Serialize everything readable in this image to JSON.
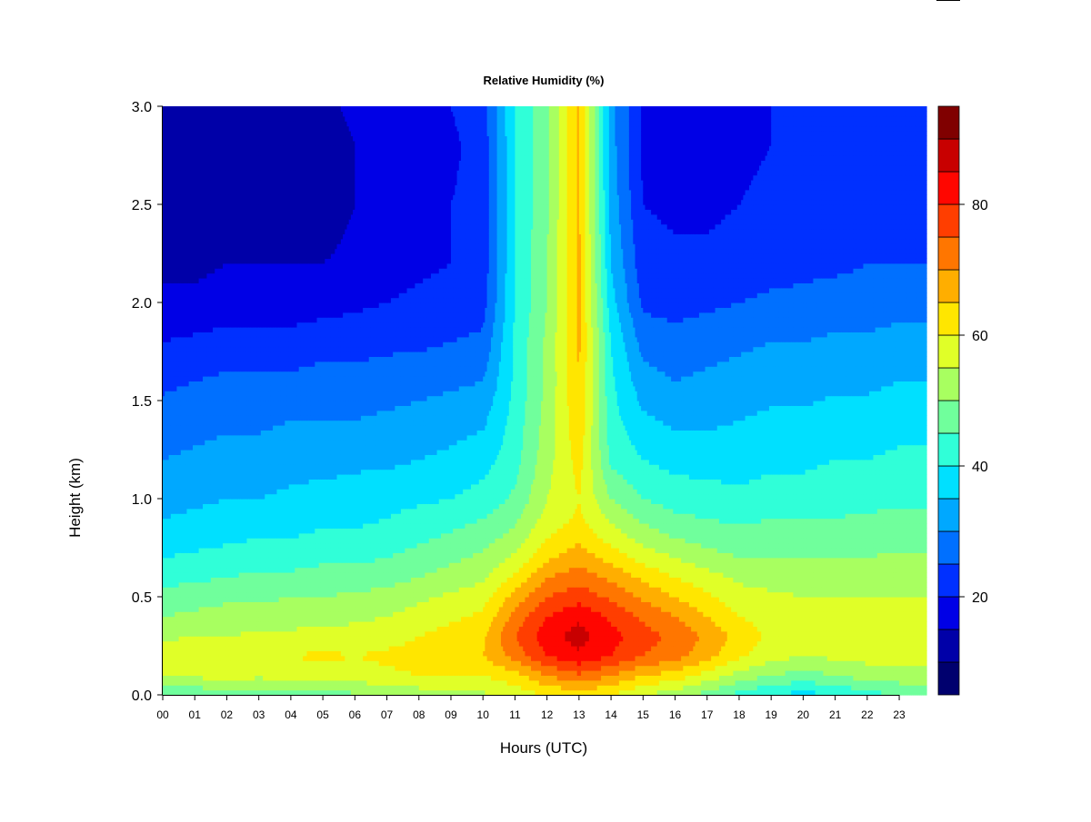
{
  "chart_data": {
    "type": "heatmap",
    "title": "Relative Humidity (%)",
    "xlabel": "Hours (UTC)",
    "ylabel": "Height (km)",
    "x_ticks": [
      "00",
      "01",
      "02",
      "03",
      "04",
      "05",
      "06",
      "07",
      "08",
      "09",
      "10",
      "11",
      "12",
      "13",
      "14",
      "15",
      "16",
      "17",
      "18",
      "19",
      "20",
      "21",
      "22",
      "23"
    ],
    "y_ticks": [
      "0.0",
      "0.5",
      "1.0",
      "1.5",
      "2.0",
      "2.5",
      "3.0"
    ],
    "xlim": [
      0,
      23.85
    ],
    "ylim": [
      0,
      3.0
    ],
    "colorbar": {
      "ticks": [
        "20",
        "40",
        "60",
        "80"
      ],
      "tick_values": [
        20,
        40,
        60,
        80
      ],
      "range": [
        5,
        95
      ],
      "levels": [
        5,
        10,
        15,
        20,
        25,
        30,
        35,
        40,
        45,
        50,
        55,
        60,
        65,
        70,
        75,
        80,
        85,
        90,
        95
      ],
      "colors": [
        "#00006e",
        "#0000a8",
        "#0000e6",
        "#0030ff",
        "#0070ff",
        "#00a8ff",
        "#00e0ff",
        "#30ffd8",
        "#70ff9c",
        "#a8ff60",
        "#e0ff28",
        "#ffe600",
        "#ffae00",
        "#ff7600",
        "#ff3e00",
        "#ff0600",
        "#c80000",
        "#800000"
      ]
    },
    "hours": [
      0,
      1,
      2,
      3,
      4,
      5,
      6,
      7,
      8,
      9,
      10,
      11,
      12,
      13,
      14,
      15,
      16,
      17,
      18,
      19,
      20,
      21,
      22,
      23
    ],
    "heights_km": [
      0.0,
      0.1,
      0.2,
      0.3,
      0.4,
      0.5,
      0.6,
      0.7,
      0.8,
      0.9,
      1.0,
      1.2,
      1.4,
      1.6,
      1.8,
      2.0,
      2.2,
      2.5,
      2.8,
      3.0
    ],
    "values": [
      [
        45,
        55,
        58,
        54,
        50,
        47,
        43,
        40,
        37,
        35,
        33,
        30,
        27,
        24,
        20,
        16,
        14,
        12,
        12,
        13
      ],
      [
        46,
        56,
        59,
        55,
        51,
        48,
        44,
        41,
        38,
        36,
        34,
        31,
        28,
        25,
        21,
        16,
        14,
        12,
        12,
        13
      ],
      [
        47,
        57,
        58,
        55,
        52,
        49,
        45,
        42,
        39,
        37,
        35,
        32,
        29,
        26,
        22,
        17,
        15,
        13,
        13,
        14
      ],
      [
        47,
        56,
        59,
        56,
        52,
        49,
        46,
        43,
        40,
        38,
        35,
        32,
        29,
        26,
        22,
        17,
        15,
        13,
        13,
        14
      ],
      [
        48,
        57,
        60,
        56,
        53,
        50,
        46,
        43,
        40,
        38,
        36,
        33,
        30,
        26,
        22,
        17,
        15,
        13,
        13,
        14
      ],
      [
        48,
        58,
        61,
        57,
        53,
        50,
        47,
        44,
        41,
        39,
        37,
        33,
        30,
        27,
        23,
        18,
        15,
        13,
        13,
        14
      ],
      [
        49,
        58,
        60,
        57,
        54,
        51,
        47,
        44,
        41,
        39,
        37,
        34,
        30,
        27,
        23,
        19,
        16,
        15,
        15,
        16
      ],
      [
        50,
        59,
        61,
        58,
        55,
        52,
        48,
        45,
        42,
        40,
        38,
        34,
        31,
        27,
        24,
        20,
        18,
        17,
        17,
        18
      ],
      [
        52,
        60,
        62,
        60,
        57,
        54,
        50,
        47,
        44,
        42,
        39,
        35,
        32,
        28,
        24,
        21,
        19,
        18,
        18,
        19
      ],
      [
        53,
        60,
        63,
        62,
        59,
        56,
        52,
        49,
        46,
        43,
        40,
        36,
        33,
        29,
        25,
        22,
        20,
        20,
        19,
        20
      ],
      [
        54,
        60,
        65,
        64,
        61,
        58,
        54,
        51,
        48,
        45,
        42,
        38,
        34,
        30,
        26,
        23,
        22,
        22,
        22,
        23
      ],
      [
        57,
        63,
        72,
        75,
        72,
        67,
        61,
        56,
        52,
        49,
        46,
        43,
        42,
        41,
        41,
        40,
        40,
        40,
        40,
        40
      ],
      [
        60,
        70,
        80,
        83,
        80,
        75,
        70,
        64,
        60,
        57,
        55,
        53,
        52,
        51,
        51,
        50,
        50,
        49,
        49,
        49
      ],
      [
        62,
        74,
        84,
        87,
        84,
        78,
        73,
        68,
        64,
        61,
        60,
        62,
        64,
        65,
        66,
        66,
        66,
        66,
        66,
        66
      ],
      [
        60,
        70,
        80,
        82,
        79,
        74,
        69,
        63,
        58,
        54,
        50,
        44,
        42,
        41,
        40,
        37,
        35,
        33,
        32,
        32
      ],
      [
        55,
        65,
        75,
        77,
        74,
        69,
        64,
        58,
        53,
        49,
        45,
        40,
        36,
        32,
        28,
        24,
        22,
        20,
        19,
        19
      ],
      [
        52,
        63,
        72,
        74,
        70,
        65,
        60,
        55,
        50,
        46,
        43,
        38,
        34,
        30,
        27,
        23,
        21,
        19,
        18,
        18
      ],
      [
        48,
        58,
        67,
        69,
        65,
        61,
        57,
        52,
        48,
        45,
        42,
        38,
        34,
        31,
        28,
        24,
        21,
        19,
        18,
        18
      ],
      [
        43,
        53,
        61,
        63,
        60,
        57,
        54,
        50,
        47,
        44,
        41,
        38,
        35,
        32,
        29,
        25,
        22,
        20,
        19,
        19
      ],
      [
        40,
        50,
        57,
        59,
        58,
        56,
        53,
        50,
        47,
        45,
        42,
        39,
        36,
        33,
        30,
        26,
        23,
        21,
        20,
        20
      ],
      [
        38,
        48,
        55,
        58,
        57,
        55,
        53,
        50,
        47,
        45,
        42,
        39,
        36,
        33,
        30,
        26,
        24,
        22,
        21,
        21
      ],
      [
        40,
        50,
        56,
        58,
        57,
        55,
        53,
        50,
        48,
        45,
        43,
        40,
        37,
        34,
        31,
        27,
        24,
        22,
        21,
        21
      ],
      [
        43,
        52,
        57,
        58,
        57,
        55,
        53,
        50,
        48,
        46,
        43,
        40,
        37,
        34,
        31,
        27,
        25,
        23,
        22,
        22
      ],
      [
        45,
        53,
        58,
        58,
        57,
        55,
        53,
        51,
        48,
        46,
        44,
        41,
        38,
        35,
        32,
        28,
        25,
        23,
        22,
        22
      ]
    ]
  }
}
